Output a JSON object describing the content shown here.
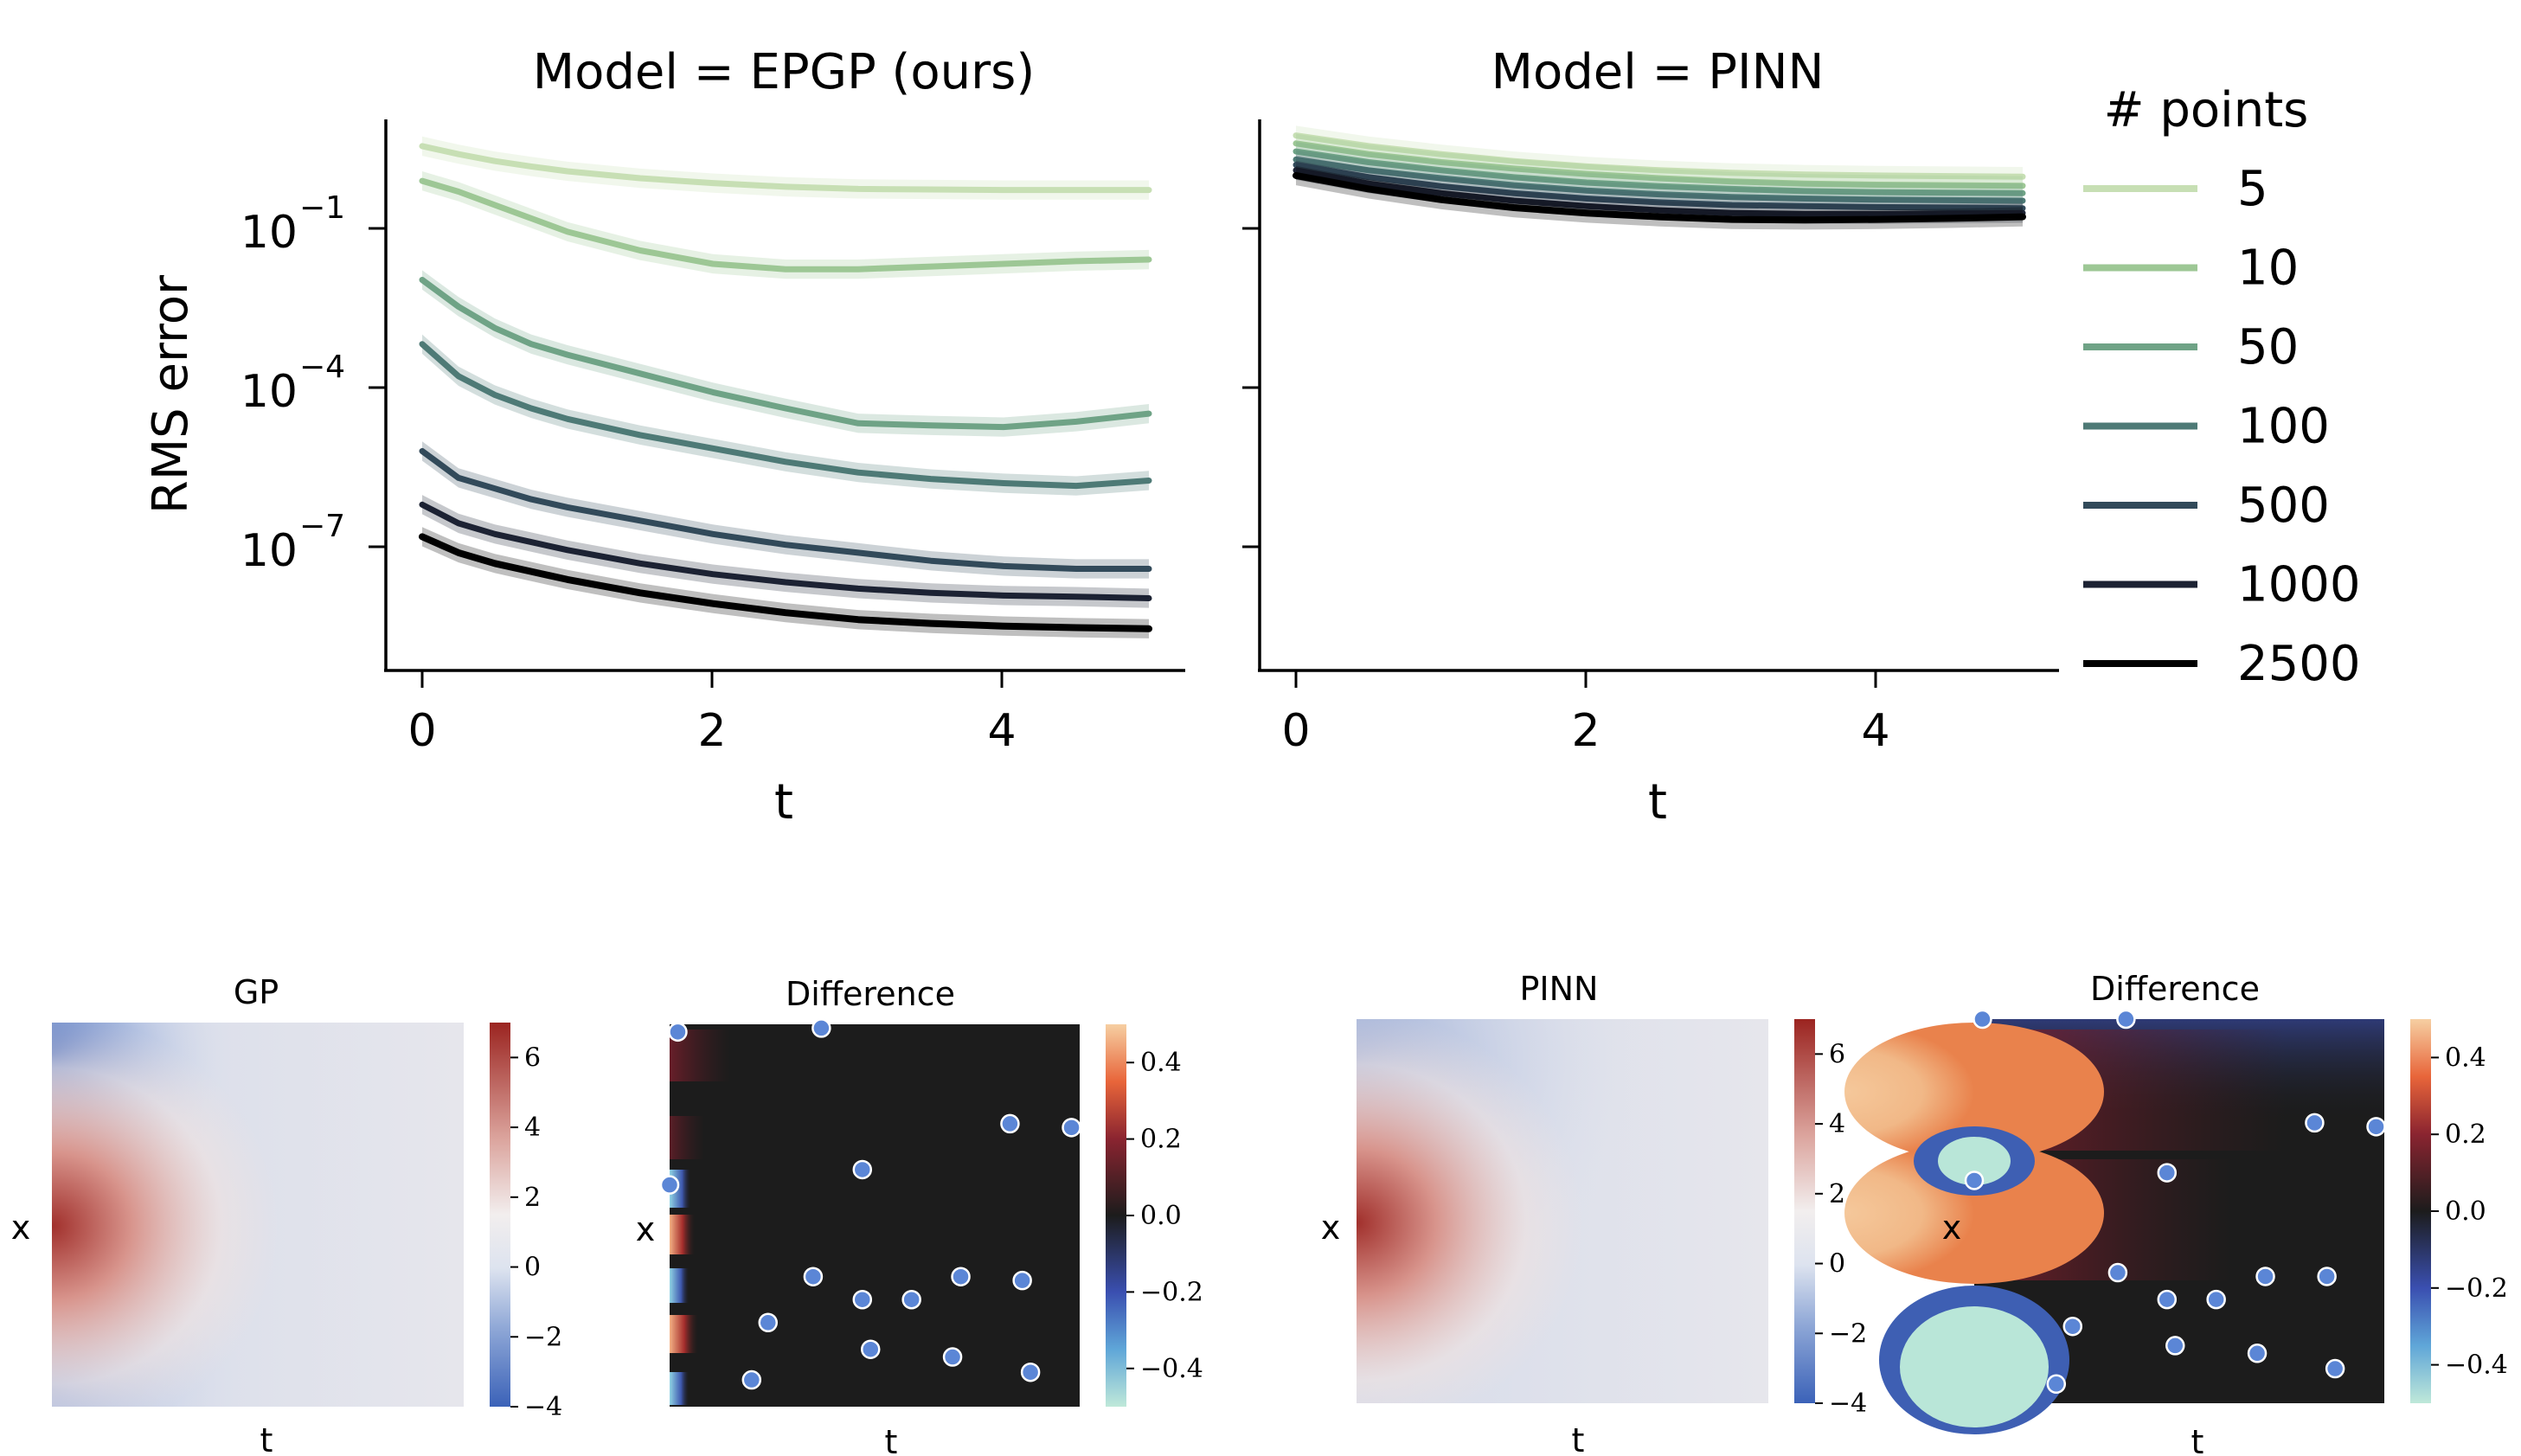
{
  "chart_data": [
    {
      "type": "line",
      "title": "Model = EPGP (ours)",
      "xlabel": "t",
      "ylabel": "RMS error",
      "yscale": "log",
      "xlim": [
        -0.25,
        5.25
      ],
      "ylim_log10": [
        -9.5,
        0.8
      ],
      "xticks": [
        "0",
        "2",
        "4"
      ],
      "yticks": [
        {
          "base": "10",
          "exp": "−1"
        },
        {
          "base": "10",
          "exp": "−4"
        },
        {
          "base": "10",
          "exp": "−7"
        }
      ],
      "x": [
        0,
        0.25,
        0.5,
        0.75,
        1,
        1.5,
        2,
        2.5,
        3,
        3.5,
        4,
        4.5,
        5
      ],
      "series_log10": [
        {
          "name": "5",
          "color": "#c7dfb4",
          "values": [
            0.3,
            0.15,
            0.02,
            -0.08,
            -0.17,
            -0.3,
            -0.39,
            -0.46,
            -0.5,
            -0.51,
            -0.52,
            -0.52,
            -0.52
          ]
        },
        {
          "name": "10",
          "color": "#9dc795",
          "values": [
            -0.35,
            -0.55,
            -0.8,
            -1.05,
            -1.3,
            -1.65,
            -1.9,
            -2.0,
            -2.0,
            -1.95,
            -1.9,
            -1.85,
            -1.82
          ]
        },
        {
          "name": "50",
          "color": "#6fa386",
          "values": [
            -2.2,
            -2.7,
            -3.1,
            -3.4,
            -3.6,
            -3.95,
            -4.3,
            -4.6,
            -4.88,
            -4.92,
            -4.95,
            -4.85,
            -4.7
          ]
        },
        {
          "name": "100",
          "color": "#4e7a76",
          "values": [
            -3.4,
            -4.0,
            -4.35,
            -4.6,
            -4.8,
            -5.1,
            -5.35,
            -5.6,
            -5.8,
            -5.92,
            -6.0,
            -6.05,
            -5.95
          ]
        },
        {
          "name": "500",
          "color": "#324a5a",
          "values": [
            -5.4,
            -5.9,
            -6.1,
            -6.3,
            -6.45,
            -6.7,
            -6.95,
            -7.15,
            -7.3,
            -7.45,
            -7.55,
            -7.6,
            -7.6
          ]
        },
        {
          "name": "1000",
          "color": "#1c2233",
          "values": [
            -6.4,
            -6.75,
            -6.95,
            -7.1,
            -7.25,
            -7.5,
            -7.7,
            -7.85,
            -7.97,
            -8.05,
            -8.1,
            -8.12,
            -8.15
          ]
        },
        {
          "name": "2500",
          "color": "#000000",
          "values": [
            -7.0,
            -7.3,
            -7.5,
            -7.65,
            -7.8,
            -8.05,
            -8.25,
            -8.42,
            -8.55,
            -8.62,
            -8.67,
            -8.7,
            -8.72
          ]
        }
      ]
    },
    {
      "type": "line",
      "title": "Model = PINN",
      "xlabel": "t",
      "yscale": "log",
      "xlim": [
        -0.25,
        5.25
      ],
      "ylim_log10": [
        -9.5,
        0.8
      ],
      "xticks": [
        "0",
        "2",
        "4"
      ],
      "x": [
        0,
        0.5,
        1,
        1.5,
        2,
        2.5,
        3,
        3.5,
        4,
        4.5,
        5
      ],
      "series_log10": [
        {
          "name": "5",
          "color": "#c7dfb4",
          "values": [
            0.5,
            0.3,
            0.15,
            0.02,
            -0.08,
            -0.15,
            -0.2,
            -0.23,
            -0.25,
            -0.26,
            -0.27
          ]
        },
        {
          "name": "10",
          "color": "#9dc795",
          "values": [
            0.35,
            0.15,
            0.0,
            -0.12,
            -0.22,
            -0.3,
            -0.36,
            -0.4,
            -0.42,
            -0.43,
            -0.44
          ]
        },
        {
          "name": "50",
          "color": "#6fa386",
          "values": [
            0.2,
            0.0,
            -0.15,
            -0.28,
            -0.38,
            -0.45,
            -0.5,
            -0.54,
            -0.56,
            -0.57,
            -0.58
          ]
        },
        {
          "name": "100",
          "color": "#4e7a76",
          "values": [
            0.05,
            -0.15,
            -0.3,
            -0.43,
            -0.53,
            -0.6,
            -0.65,
            -0.68,
            -0.7,
            -0.71,
            -0.72
          ]
        },
        {
          "name": "500",
          "color": "#324a5a",
          "values": [
            -0.05,
            -0.28,
            -0.45,
            -0.58,
            -0.68,
            -0.75,
            -0.8,
            -0.82,
            -0.84,
            -0.85,
            -0.86
          ]
        },
        {
          "name": "1000",
          "color": "#1c2233",
          "values": [
            -0.15,
            -0.4,
            -0.58,
            -0.72,
            -0.82,
            -0.9,
            -0.95,
            -0.97,
            -0.97,
            -0.96,
            -0.95
          ]
        },
        {
          "name": "2500",
          "color": "#000000",
          "values": [
            -0.25,
            -0.5,
            -0.7,
            -0.85,
            -0.95,
            -1.02,
            -1.07,
            -1.08,
            -1.07,
            -1.05,
            -1.02
          ]
        }
      ]
    },
    {
      "type": "heatmap",
      "title": "GP",
      "xlabel": "t",
      "ylabel": "x",
      "colorbar_ticks": [
        "6",
        "4",
        "2",
        "0",
        "−2",
        "−4"
      ],
      "colorbar_range": [
        -4,
        7
      ]
    },
    {
      "type": "heatmap",
      "title": "Difference",
      "xlabel": "t",
      "ylabel": "x",
      "colorbar_ticks": [
        "0.4",
        "0.2",
        "0.0",
        "−0.2",
        "−0.4"
      ],
      "colorbar_range": [
        -0.5,
        0.5
      ],
      "points": [
        [
          0.02,
          0.98
        ],
        [
          0.37,
          0.99
        ],
        [
          0.83,
          0.74
        ],
        [
          0.98,
          0.73
        ],
        [
          0.47,
          0.62
        ],
        [
          0.0,
          0.58
        ],
        [
          0.35,
          0.34
        ],
        [
          0.47,
          0.28
        ],
        [
          0.59,
          0.28
        ],
        [
          0.71,
          0.34
        ],
        [
          0.86,
          0.33
        ],
        [
          0.24,
          0.22
        ],
        [
          0.49,
          0.15
        ],
        [
          0.69,
          0.13
        ],
        [
          0.88,
          0.09
        ],
        [
          0.2,
          0.07
        ]
      ]
    },
    {
      "type": "heatmap",
      "title": "PINN",
      "xlabel": "t",
      "ylabel": "x",
      "colorbar_ticks": [
        "6",
        "4",
        "2",
        "0",
        "−2",
        "−4"
      ],
      "colorbar_range": [
        -4,
        7
      ]
    },
    {
      "type": "heatmap",
      "title": "Difference",
      "xlabel": "t",
      "ylabel": "x",
      "colorbar_ticks": [
        "0.4",
        "0.2",
        "0.0",
        "−0.2",
        "−0.4"
      ],
      "colorbar_range": [
        -0.5,
        0.5
      ],
      "points": [
        [
          0.02,
          1.0
        ],
        [
          0.37,
          1.0
        ],
        [
          0.83,
          0.73
        ],
        [
          0.98,
          0.72
        ],
        [
          0.47,
          0.6
        ],
        [
          0.0,
          0.58
        ],
        [
          0.35,
          0.34
        ],
        [
          0.47,
          0.27
        ],
        [
          0.59,
          0.27
        ],
        [
          0.71,
          0.33
        ],
        [
          0.86,
          0.33
        ],
        [
          0.24,
          0.2
        ],
        [
          0.49,
          0.15
        ],
        [
          0.69,
          0.13
        ],
        [
          0.88,
          0.09
        ],
        [
          0.2,
          0.05
        ]
      ]
    }
  ],
  "legend": {
    "title": "# points",
    "entries": [
      {
        "label": "5",
        "color": "#c7dfb4"
      },
      {
        "label": "10",
        "color": "#9dc795"
      },
      {
        "label": "50",
        "color": "#6fa386"
      },
      {
        "label": "100",
        "color": "#4e7a76"
      },
      {
        "label": "500",
        "color": "#324a5a"
      },
      {
        "label": "1000",
        "color": "#1c2233"
      },
      {
        "label": "2500",
        "color": "#000000"
      }
    ]
  }
}
